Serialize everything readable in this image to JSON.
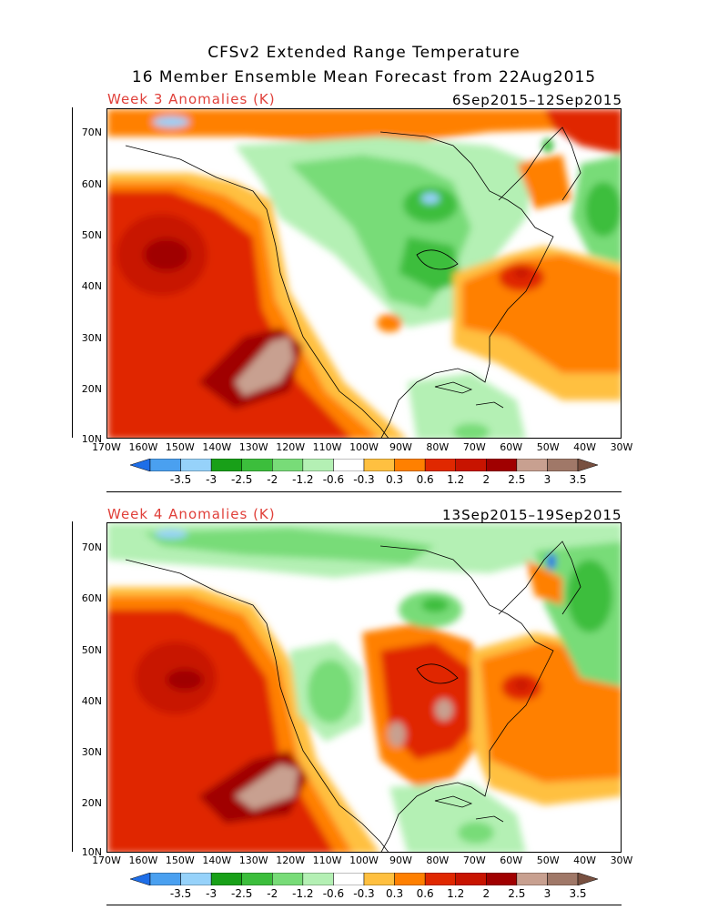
{
  "title_line1": "CFSv2 Extended Range Temperature",
  "title_line2": "16 Member Ensemble Mean Forecast from 22Aug2015",
  "panels": [
    {
      "label": "Week 3 Anomalies (K)",
      "dates": "6Sep2015–12Sep2015"
    },
    {
      "label": "Week 4 Anomalies (K)",
      "dates": "13Sep2015–19Sep2015"
    }
  ],
  "lat_ticks": [
    "70N",
    "60N",
    "50N",
    "40N",
    "30N",
    "20N",
    "10N"
  ],
  "lon_ticks": [
    "170W",
    "160W",
    "150W",
    "140W",
    "130W",
    "120W",
    "110W",
    "100W",
    "90W",
    "80W",
    "70W",
    "60W",
    "50W",
    "40W",
    "30W"
  ],
  "colorbar": {
    "labels": [
      "-3.5",
      "-3",
      "-2.5",
      "-2",
      "-1.2",
      "-0.6",
      "-0.3",
      "0.3",
      "0.6",
      "1.2",
      "2",
      "2.5",
      "3",
      "3.5"
    ],
    "colors": [
      "#1e6ee8",
      "#4aa0f0",
      "#96d2fa",
      "#18a018",
      "#3cbe3c",
      "#78dc78",
      "#b4f0b4",
      "#ffffff",
      "#ffc040",
      "#ff8000",
      "#e02800",
      "#c81400",
      "#a00000",
      "#c8a090",
      "#a07868",
      "#785040"
    ]
  }
}
